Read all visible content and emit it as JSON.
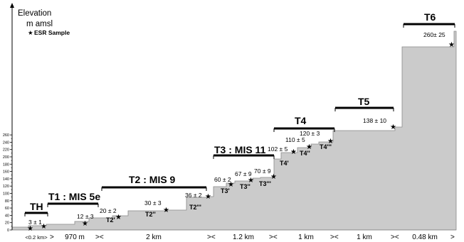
{
  "axis": {
    "title_line1": "Elevation",
    "title_line2": "m amsl",
    "ticks": [
      "0",
      "20",
      "40",
      "60",
      "80",
      "100",
      "120",
      "140",
      "160",
      "180",
      "200",
      "220",
      "240",
      "260"
    ]
  },
  "legend": {
    "symbol": "★",
    "label": "ESR Sample"
  },
  "terraces": [
    {
      "id": "th",
      "label": "TH"
    },
    {
      "id": "t1",
      "label": "T1 : MIS 5e"
    },
    {
      "id": "t2",
      "label": "T2 : MIS 9"
    },
    {
      "id": "t3",
      "label": "T3 : MIS 11"
    },
    {
      "id": "t4",
      "label": "T4"
    },
    {
      "id": "t5",
      "label": "T5"
    },
    {
      "id": "t6",
      "label": "T6"
    }
  ],
  "subterraces": [
    "T2'",
    "T2''",
    "T2'''",
    "T3'",
    "T3''",
    "T3'''",
    "T4'",
    "T4''",
    "T4'''"
  ],
  "ages": [
    "3 ± 1",
    "12 ± 3",
    "20 ± 2",
    "30 ± 3",
    "36 ± 2",
    "60 ± 2",
    "67 ± 9",
    "70 ± 9",
    "102 ± 5",
    "110 ± 5",
    "120 ± 3",
    "138 ± 10",
    "260± 25"
  ],
  "distances": [
    "<0.2 km>",
    "970 m",
    "2 km",
    "1.2 km",
    "1 km",
    "1 km",
    "0.48 km"
  ],
  "bracket_marks": [
    "<",
    ">",
    "><",
    "><",
    "><",
    "><",
    "><",
    "><",
    ">"
  ],
  "colors": {
    "profile_fill": "#cbcbcb",
    "profile_stroke": "#8a8a8a",
    "bar": "#000000"
  }
}
